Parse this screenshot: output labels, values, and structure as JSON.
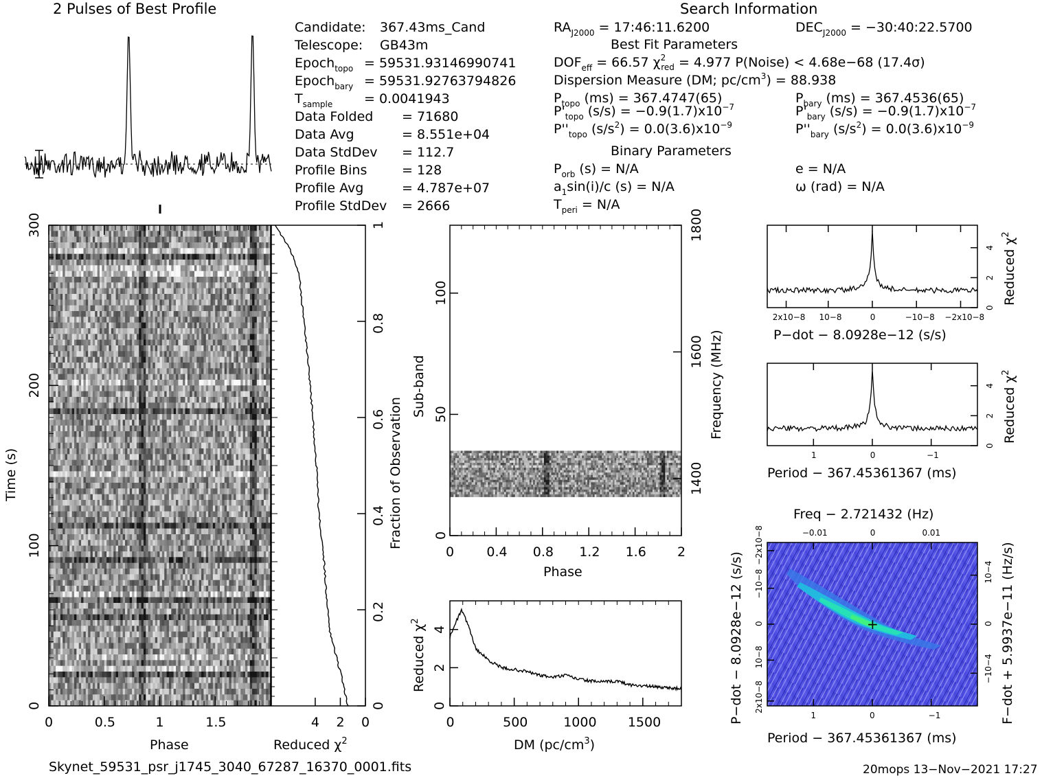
{
  "header": {
    "profile_title": "2 Pulses of Best Profile",
    "search_title": "Search Information"
  },
  "candidate_info": [
    {
      "label": "Candidate:",
      "value": "367.43ms_Cand"
    },
    {
      "label": "Telescope:",
      "value": "GB43m"
    },
    {
      "label": "Epoch",
      "sub": "topo",
      "value": "= 59531.93146990741"
    },
    {
      "label": "Epoch",
      "sub": "bary",
      "value": "= 59531.92763794826"
    },
    {
      "label": "T",
      "sub": "sample",
      "value": "=  0.0041943"
    },
    {
      "label": "Data Folded",
      "value": "=  71680"
    },
    {
      "label": "Data Avg",
      "value": "=  8.551e+04"
    },
    {
      "label": "Data StdDev",
      "value": "=  112.7"
    },
    {
      "label": "Profile Bins",
      "value": "=  128"
    },
    {
      "label": "Profile Avg",
      "value": "=  4.787e+07"
    },
    {
      "label": "Profile StdDev",
      "value": "=  2666"
    }
  ],
  "search_info": {
    "ra": "RAJ2000 = 17:46:11.6200",
    "dec": "DECJ2000 = −30:40:22.5700",
    "best_fit_title": "Best Fit Parameters",
    "dof": "DOFeff = 66.57  χ²red = 4.977  P(Noise) < 4.68e−68  (17.4σ)",
    "dm": "Dispersion Measure (DM; pc/cm³) = 88.938",
    "ptopo": "Ptopo (ms) =  367.4747(65)",
    "pbary": "Pbary (ms) =  367.4536(65)",
    "pdtopo": "P'topo (s/s) = −0.9(1.7)x10⁻⁷",
    "pdbary": "P'bary (s/s) = −0.9(1.7)x10⁻⁷",
    "pddtopo": "P''topo (s/s²) = 0.0(3.6)x10⁻⁹",
    "pddbary": "P''bary (s/s²) = 0.0(3.6)x10⁻⁹",
    "binary_title": "Binary Parameters",
    "porb": "Porb (s) = N/A",
    "ecc": "e = N/A",
    "asini": "a1sin(i)/c (s) = N/A",
    "omega": "ω (rad) = N/A",
    "tperi": "Tperi = N/A"
  },
  "footer": {
    "filename": "Skynet_59531_psr_j1745_3040_67287_16370_0001.fits",
    "stamp": "20mops 13−Nov−2021 17:27"
  },
  "chart_data": [
    {
      "id": "pulse-profile",
      "type": "line",
      "title": "2 Pulses of Best Profile",
      "x": "phase 0–2 (two pulses)",
      "peaks": [
        {
          "phase": 0.84,
          "height": 1.0
        },
        {
          "phase": 1.84,
          "height": 1.0
        }
      ]
    },
    {
      "id": "time-phase",
      "type": "heatmap",
      "xlabel": "Phase",
      "ylabel": "Time (s)",
      "xticks": [
        "0",
        "0.5",
        "1",
        "1.5"
      ],
      "yticks": [
        "0",
        "100",
        "200",
        "300"
      ],
      "xlim": [
        0,
        2
      ],
      "ylim": [
        0,
        300
      ]
    },
    {
      "id": "time-chi2",
      "type": "line",
      "xlabel": "Reduced χ2",
      "ylabel": "Fraction of Observation",
      "xticks": [
        "4",
        "2",
        "0"
      ],
      "yticks": [
        "0",
        "0.2",
        "0.4",
        "0.6",
        "0.8",
        "1"
      ],
      "fraction": [
        0,
        0.05,
        0.1,
        0.15,
        0.2,
        0.3,
        0.4,
        0.5,
        0.6,
        0.7,
        0.8,
        0.9,
        0.95,
        1.0
      ],
      "chi2": [
        1.4,
        1.8,
        2.3,
        2.8,
        3.0,
        3.3,
        3.7,
        3.9,
        4.2,
        4.5,
        4.9,
        5.3,
        6.0,
        7.2
      ]
    },
    {
      "id": "subband-phase",
      "type": "heatmap",
      "xlabel": "Phase",
      "ylabel": "Sub-band",
      "y2label": "Frequency (MHz)",
      "xticks": [
        "0",
        "0.4",
        "0.8",
        "1.2",
        "1.6",
        "2"
      ],
      "yticks": [
        "0",
        "50",
        "100"
      ],
      "y2ticks": [
        "1400",
        "1600",
        "1800"
      ],
      "xlim": [
        0,
        2
      ],
      "ylim": [
        0,
        128
      ],
      "band": [
        16,
        35
      ]
    },
    {
      "id": "dm-chi2",
      "type": "line",
      "xlabel": "DM (pc/cm3)",
      "ylabel": "Reduced χ2",
      "xticks": [
        "0",
        "500",
        "1000",
        "1500"
      ],
      "yticks": [
        "0",
        "2",
        "4"
      ],
      "xlim": [
        0,
        1800
      ],
      "ylim": [
        0,
        5.5
      ],
      "x": [
        0,
        40,
        89,
        140,
        200,
        300,
        400,
        500,
        600,
        700,
        800,
        900,
        1000,
        1100,
        1200,
        1300,
        1400,
        1500,
        1600,
        1700,
        1800
      ],
      "y": [
        3.6,
        4.3,
        5.0,
        4.3,
        3.0,
        2.4,
        2.0,
        1.9,
        1.8,
        1.6,
        1.5,
        1.6,
        1.4,
        1.3,
        1.25,
        1.3,
        1.1,
        1.05,
        1.0,
        0.95,
        0.9
      ]
    },
    {
      "id": "pdot-chi2",
      "type": "line",
      "xlabel": "P−dot − 8.0928e−12 (s/s)",
      "ylabel": "Reduced χ2",
      "xticks": [
        "2x10−8",
        "10−8",
        "0",
        "−10−8",
        "−2x10−8"
      ],
      "yticks": [
        "0",
        "2",
        "4"
      ],
      "peak": {
        "x": 0,
        "y": 4.977
      }
    },
    {
      "id": "period-chi2",
      "type": "line",
      "xlabel": "Period − 367.45361367 (ms)",
      "ylabel": "Reduced χ2",
      "xticks": [
        "1",
        "0",
        "−1"
      ],
      "yticks": [
        "0",
        "2",
        "4"
      ],
      "peak": {
        "x": 0,
        "y": 4.977
      }
    },
    {
      "id": "pdot-period",
      "type": "heatmap",
      "title": "Freq − 2.721432 (Hz)",
      "xlabel": "Period − 367.45361367 (ms)",
      "ylabel": "P−dot − 8.0928e−12 (s/s)",
      "y2label": "F−dot + 5.9937e−11 (Hz/s)",
      "xticks": [
        "1",
        "0",
        "−1"
      ],
      "x2ticks": [
        "−0.01",
        "0",
        "0.01"
      ],
      "yticks": [
        "2x10−8",
        "10−8",
        "0",
        "−10−8",
        "−2x10−8"
      ],
      "y2ticks": [
        "−10−4",
        "0",
        "10−4"
      ]
    }
  ]
}
